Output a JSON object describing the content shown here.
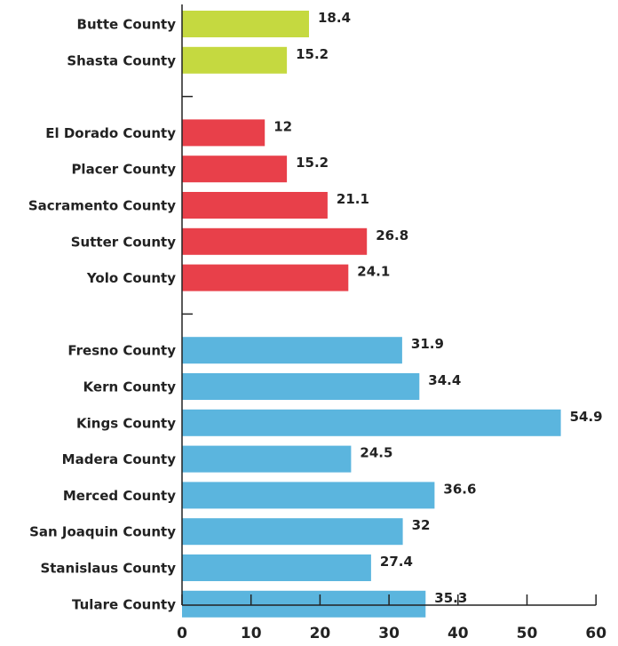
{
  "chart_data": {
    "type": "bar",
    "orientation": "horizontal",
    "title": "",
    "xlabel": "",
    "ylabel": "",
    "xlim": [
      0,
      60
    ],
    "x_ticks": [
      0,
      10,
      20,
      30,
      40,
      50,
      60
    ],
    "grid": false,
    "legend": "none",
    "groups": [
      {
        "color": "#c5d940",
        "categories": [
          "Butte County",
          "Shasta County"
        ],
        "values": [
          18.4,
          15.2
        ]
      },
      {
        "color": "#e8404a",
        "categories": [
          "El Dorado County",
          "Placer County",
          "Sacramento County",
          "Sutter County",
          "Yolo County"
        ],
        "values": [
          12,
          15.2,
          21.1,
          26.8,
          24.1
        ]
      },
      {
        "color": "#5bb5de",
        "categories": [
          "Fresno County",
          "Kern County",
          "Kings County",
          "Madera County",
          "Merced County",
          "San Joaquin County",
          "Stanislaus County",
          "Tulare County"
        ],
        "values": [
          31.9,
          34.4,
          54.9,
          24.5,
          36.6,
          32,
          27.4,
          35.3
        ]
      }
    ],
    "value_labels": {
      "Butte County": "18.4",
      "Shasta County": "15.2",
      "El Dorado County": "12",
      "Placer County": "15.2",
      "Sacramento County": "21.1",
      "Sutter County": "26.8",
      "Yolo County": "24.1",
      "Fresno County": "31.9",
      "Kern County": "34.4",
      "Kings County": "54.9",
      "Madera County": "24.5",
      "Merced County": "36.6",
      "San Joaquin County": "32",
      "Stanislaus County": "27.4",
      "Tulare County": "35.3"
    }
  }
}
